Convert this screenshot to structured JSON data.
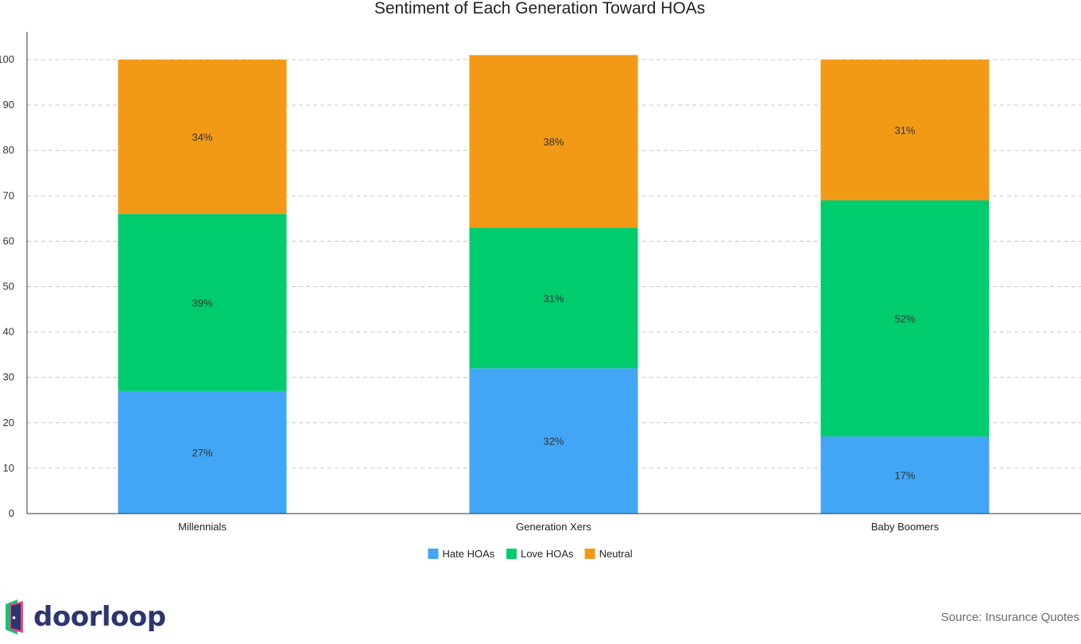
{
  "chart_data": {
    "type": "bar",
    "stacked": true,
    "title": "Sentiment of Each Generation Toward HOAs",
    "categories": [
      "Millennials",
      "Generation Xers",
      "Baby Boomers"
    ],
    "series": [
      {
        "name": "Hate HOAs",
        "values": [
          27,
          32,
          17
        ],
        "labels": [
          "27%",
          "32%",
          "17%"
        ],
        "color": "#42a5f5"
      },
      {
        "name": "Love HOAs",
        "values": [
          39,
          31,
          52
        ],
        "labels": [
          "39%",
          "31%",
          "52%"
        ],
        "color": "#00cc6e"
      },
      {
        "name": "Neutral",
        "values": [
          34,
          38,
          31
        ],
        "labels": [
          "34%",
          "38%",
          "31%"
        ],
        "color": "#f29a16"
      }
    ],
    "ylim": [
      0,
      106
    ],
    "yticks": [
      0,
      10,
      20,
      30,
      40,
      50,
      60,
      70,
      80,
      90,
      100
    ],
    "grid": true,
    "legend_position": "bottom-center"
  },
  "branding": {
    "logo_text": "doorloop",
    "logo_icon": "door-icon"
  },
  "source_text": "Source: Insurance Quotes"
}
